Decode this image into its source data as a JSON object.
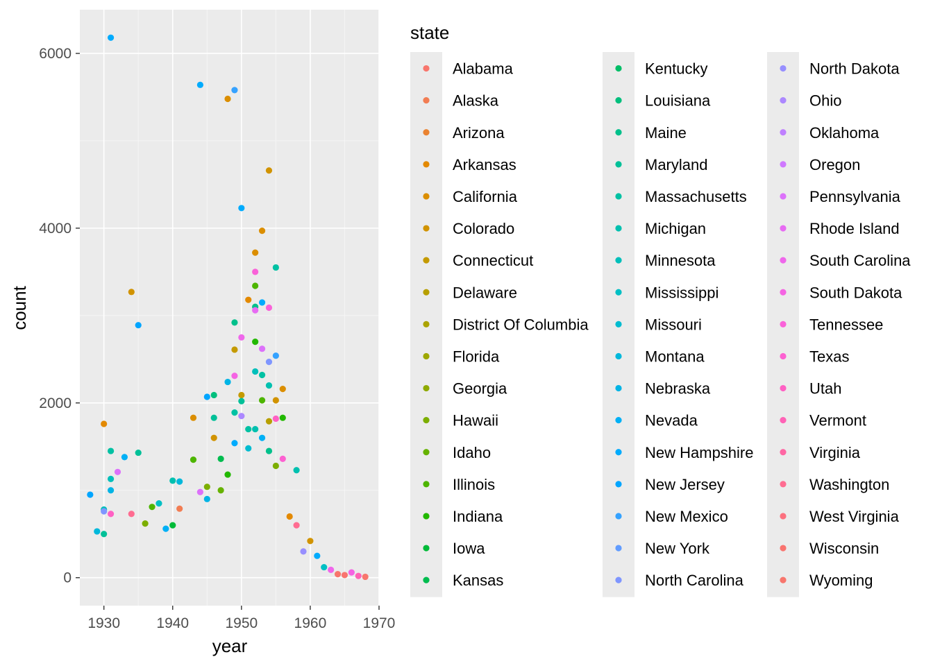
{
  "chart_data": {
    "type": "scatter",
    "xlabel": "year",
    "ylabel": "count",
    "xlim": [
      1926.5,
      1970
    ],
    "ylim": [
      -320,
      6500
    ],
    "x_ticks": [
      1930,
      1940,
      1950,
      1960,
      1970
    ],
    "y_ticks": [
      0,
      2000,
      4000,
      6000
    ],
    "grid": true,
    "legend": {
      "title": "state",
      "placement": "right",
      "columns": 3
    },
    "states": [
      {
        "name": "Alabama",
        "color": "#F8766D"
      },
      {
        "name": "Alaska",
        "color": "#F27D53"
      },
      {
        "name": "Arizona",
        "color": "#EA8331"
      },
      {
        "name": "Arkansas",
        "color": "#E38900"
      },
      {
        "name": "California",
        "color": "#DB8E00"
      },
      {
        "name": "Colorado",
        "color": "#D19300"
      },
      {
        "name": "Connecticut",
        "color": "#C49A00"
      },
      {
        "name": "Delaware",
        "color": "#B79F00"
      },
      {
        "name": "District Of Columbia",
        "color": "#ABA300"
      },
      {
        "name": "Florida",
        "color": "#9DA700"
      },
      {
        "name": "Georgia",
        "color": "#8FAA00"
      },
      {
        "name": "Hawaii",
        "color": "#7CAE00"
      },
      {
        "name": "Idaho",
        "color": "#66B200"
      },
      {
        "name": "Illinois",
        "color": "#4DB500"
      },
      {
        "name": "Indiana",
        "color": "#22B800"
      },
      {
        "name": "Iowa",
        "color": "#00BA38"
      },
      {
        "name": "Kansas",
        "color": "#00BC4F"
      },
      {
        "name": "Kentucky",
        "color": "#00BE67"
      },
      {
        "name": "Louisiana",
        "color": "#00BF7D"
      },
      {
        "name": "Maine",
        "color": "#00C08B"
      },
      {
        "name": "Maryland",
        "color": "#00C098"
      },
      {
        "name": "Massachusetts",
        "color": "#00C1A3"
      },
      {
        "name": "Michigan",
        "color": "#00C0AF"
      },
      {
        "name": "Minnesota",
        "color": "#00BFBA"
      },
      {
        "name": "Mississippi",
        "color": "#00BFC4"
      },
      {
        "name": "Missouri",
        "color": "#00BCD0"
      },
      {
        "name": "Montana",
        "color": "#00B8DB"
      },
      {
        "name": "Nebraska",
        "color": "#00B4E5"
      },
      {
        "name": "Nevada",
        "color": "#00B0F6"
      },
      {
        "name": "New Hampshire",
        "color": "#00ABFD"
      },
      {
        "name": "New Jersey",
        "color": "#00A5FF"
      },
      {
        "name": "New Mexico",
        "color": "#35A2FF"
      },
      {
        "name": "New York",
        "color": "#619CFF"
      },
      {
        "name": "North Carolina",
        "color": "#7F96FF"
      },
      {
        "name": "North Dakota",
        "color": "#978FFF"
      },
      {
        "name": "Ohio",
        "color": "#AC88FF"
      },
      {
        "name": "Oklahoma",
        "color": "#BF80FF"
      },
      {
        "name": "Oregon",
        "color": "#CF78FF"
      },
      {
        "name": "Pennsylvania",
        "color": "#DC71FA"
      },
      {
        "name": "Rhode Island",
        "color": "#E76BF3"
      },
      {
        "name": "South Carolina",
        "color": "#EF67EB"
      },
      {
        "name": "South Dakota",
        "color": "#F564E3"
      },
      {
        "name": "Tennessee",
        "color": "#FA62D9"
      },
      {
        "name": "Texas",
        "color": "#FD61D1"
      },
      {
        "name": "Utah",
        "color": "#FF61C4"
      },
      {
        "name": "Vermont",
        "color": "#FF63B6"
      },
      {
        "name": "Virginia",
        "color": "#FF67A4"
      },
      {
        "name": "Washington",
        "color": "#FF6C91"
      },
      {
        "name": "West Virginia",
        "color": "#FC717F"
      },
      {
        "name": "Wisconsin",
        "color": "#F9746F"
      },
      {
        "name": "Wyoming",
        "color": "#F8766D"
      }
    ],
    "points": [
      [
        1928,
        950,
        30
      ],
      [
        1929,
        530,
        26
      ],
      [
        1930,
        1760,
        3
      ],
      [
        1930,
        780,
        23
      ],
      [
        1930,
        500,
        20
      ],
      [
        1930,
        760,
        33
      ],
      [
        1931,
        6180,
        29
      ],
      [
        1931,
        1450,
        21
      ],
      [
        1931,
        1130,
        23
      ],
      [
        1931,
        730,
        44
      ],
      [
        1931,
        1000,
        27
      ],
      [
        1932,
        1210,
        38
      ],
      [
        1933,
        1380,
        28
      ],
      [
        1934,
        3270,
        5
      ],
      [
        1934,
        730,
        47
      ],
      [
        1935,
        2890,
        30
      ],
      [
        1935,
        1430,
        20
      ],
      [
        1936,
        620,
        11
      ],
      [
        1937,
        810,
        13
      ],
      [
        1938,
        850,
        24
      ],
      [
        1939,
        560,
        28
      ],
      [
        1940,
        1110,
        22
      ],
      [
        1940,
        600,
        15
      ],
      [
        1941,
        1100,
        26
      ],
      [
        1941,
        790,
        1
      ],
      [
        1943,
        1830,
        4
      ],
      [
        1943,
        1350,
        13
      ],
      [
        1944,
        5640,
        29
      ],
      [
        1944,
        980,
        38
      ],
      [
        1945,
        2070,
        30
      ],
      [
        1945,
        1040,
        11
      ],
      [
        1945,
        900,
        27
      ],
      [
        1946,
        2090,
        18
      ],
      [
        1946,
        1830,
        20
      ],
      [
        1946,
        1600,
        5
      ],
      [
        1947,
        1360,
        16
      ],
      [
        1947,
        1000,
        12
      ],
      [
        1948,
        5480,
        4
      ],
      [
        1948,
        2240,
        27
      ],
      [
        1948,
        1180,
        14
      ],
      [
        1949,
        5580,
        31
      ],
      [
        1949,
        2920,
        19
      ],
      [
        1949,
        2610,
        6
      ],
      [
        1949,
        2310,
        41
      ],
      [
        1949,
        1890,
        21
      ],
      [
        1949,
        1540,
        29
      ],
      [
        1950,
        4230,
        29
      ],
      [
        1950,
        2750,
        40
      ],
      [
        1950,
        2090,
        6
      ],
      [
        1950,
        2020,
        20
      ],
      [
        1950,
        1850,
        35
      ],
      [
        1951,
        3180,
        3
      ],
      [
        1951,
        1700,
        21
      ],
      [
        1951,
        1480,
        25
      ],
      [
        1952,
        3720,
        4
      ],
      [
        1952,
        3500,
        42
      ],
      [
        1952,
        3340,
        13
      ],
      [
        1952,
        3100,
        19
      ],
      [
        1952,
        3060,
        39
      ],
      [
        1952,
        2700,
        14
      ],
      [
        1952,
        2360,
        23
      ],
      [
        1952,
        1700,
        22
      ],
      [
        1953,
        3970,
        4
      ],
      [
        1953,
        3150,
        29
      ],
      [
        1953,
        2620,
        38
      ],
      [
        1953,
        2320,
        21
      ],
      [
        1953,
        2030,
        13
      ],
      [
        1953,
        1600,
        28
      ],
      [
        1954,
        4660,
        5
      ],
      [
        1954,
        3090,
        42
      ],
      [
        1954,
        2470,
        33
      ],
      [
        1954,
        2200,
        22
      ],
      [
        1954,
        1790,
        7
      ],
      [
        1954,
        1450,
        19
      ],
      [
        1955,
        3550,
        21
      ],
      [
        1955,
        2540,
        31
      ],
      [
        1955,
        2030,
        5
      ],
      [
        1955,
        1820,
        44
      ],
      [
        1955,
        1280,
        11
      ],
      [
        1956,
        2160,
        4
      ],
      [
        1956,
        1830,
        14
      ],
      [
        1956,
        1360,
        43
      ],
      [
        1957,
        700,
        3
      ],
      [
        1958,
        1230,
        22
      ],
      [
        1958,
        600,
        47
      ],
      [
        1959,
        300,
        34
      ],
      [
        1960,
        420,
        5
      ],
      [
        1961,
        250,
        29
      ],
      [
        1962,
        120,
        24
      ],
      [
        1963,
        90,
        40
      ],
      [
        1964,
        40,
        0
      ],
      [
        1965,
        30,
        49
      ],
      [
        1966,
        60,
        41
      ],
      [
        1967,
        20,
        45
      ],
      [
        1968,
        10,
        0
      ]
    ]
  }
}
